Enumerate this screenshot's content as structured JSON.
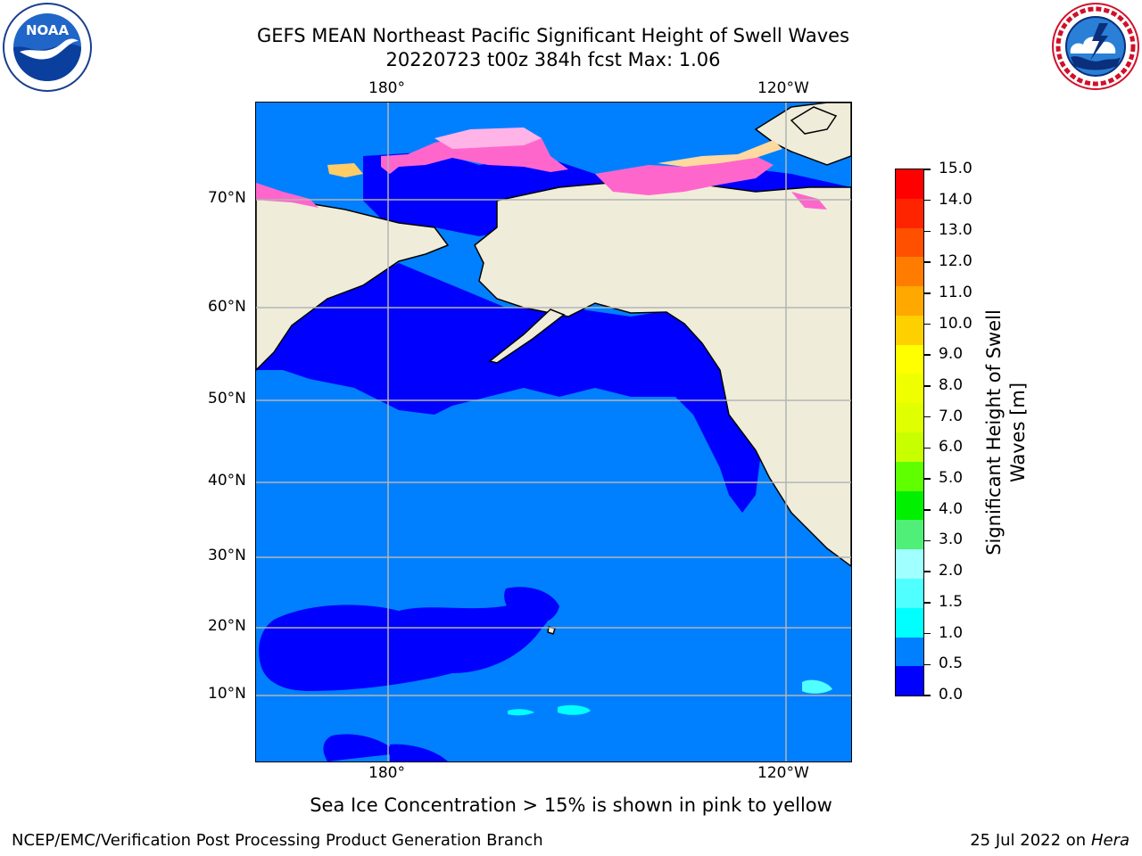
{
  "header": {
    "title_line1": "GEFS MEAN Northeast Pacific Significant Height of Swell Waves",
    "title_line2": "20220723 t00z 384h fcst   Max: 1.06"
  },
  "logos": {
    "left": {
      "text": "NOAA",
      "ring_text": "NATIONAL OCEANIC AND ATMOSPHERIC ADMINISTRATION • U.S. DEPARTMENT OF COMMERCE"
    },
    "right": {
      "ring_text": "NATIONAL WEATHER SERVICE"
    }
  },
  "map": {
    "lon_ticks": [
      "180°",
      "120°W"
    ],
    "lat_ticks": [
      "70°N",
      "60°N",
      "50°N",
      "40°N",
      "30°N",
      "20°N",
      "10°N"
    ],
    "colors": {
      "ocean_low": "#0000ff",
      "ocean_mid": "#0080ff",
      "ocean_high": "#00ffff",
      "land": "#efedda",
      "ice_pink": "#ff66cc",
      "ice_yellow": "#ffe680",
      "grid": "#b4b4b4"
    }
  },
  "colorbar": {
    "label_line1": "Significant Height of Swell",
    "label_line2": "Waves [m]",
    "ticks": [
      "15.0",
      "14.0",
      "13.0",
      "12.0",
      "11.0",
      "10.0",
      "9.0",
      "8.0",
      "7.0",
      "6.0",
      "5.0",
      "4.0",
      "3.0",
      "2.0",
      "1.5",
      "1.0",
      "0.5",
      "0.0"
    ],
    "colors_top_to_bottom": [
      "#ff0000",
      "#ff2400",
      "#ff5000",
      "#ff7c00",
      "#ffa800",
      "#ffd000",
      "#ffff00",
      "#f0ff00",
      "#e0ff00",
      "#c8ff00",
      "#60ff00",
      "#00f000",
      "#50f078",
      "#a0ffff",
      "#50ffff",
      "#00ffff",
      "#0080ff",
      "#0000ff"
    ]
  },
  "caption": "Sea Ice Concentration > 15% is shown in pink to yellow",
  "footer": {
    "left": "NCEP/EMC/Verification Post Processing Product Generation Branch",
    "date": "25 Jul 2022 on ",
    "host": "Hera"
  }
}
